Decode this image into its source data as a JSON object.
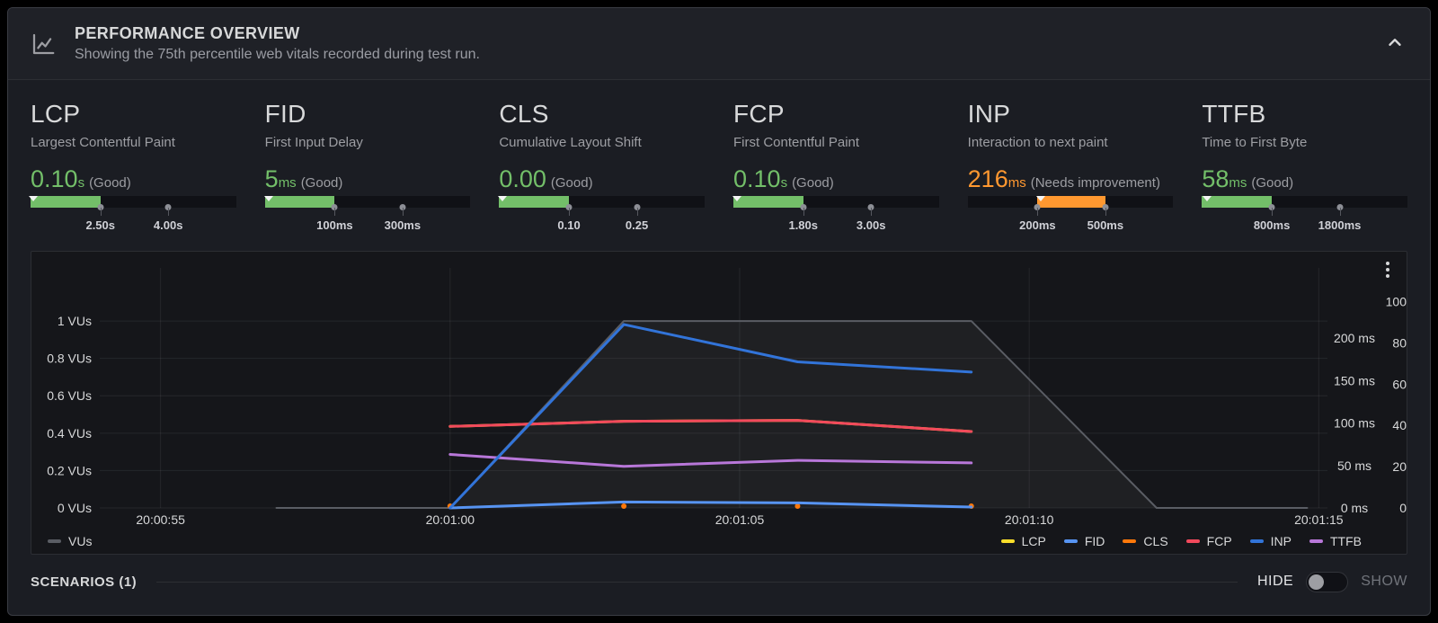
{
  "header": {
    "title": "PERFORMANCE OVERVIEW",
    "subtitle": "Showing the 75th percentile web vitals recorded during test run."
  },
  "icons": {
    "panel": "line-chart",
    "collapse": "chevron-up",
    "panel_menu": "kebab-vertical"
  },
  "colors": {
    "good": "#73BF69",
    "needs_improvement": "#FF9830",
    "axis_text": "#d8d9da",
    "grid": "rgba(255,255,255,0.07)",
    "series": {
      "VUs": "#5a5d64",
      "LCP": "#FADE2A",
      "FID": "#5794F2",
      "CLS": "#FF780A",
      "FCP": "#F2495C",
      "INP": "#3274D9",
      "TTFB": "#B877D9"
    }
  },
  "metrics": {
    "cards": [
      {
        "abbr": "LCP",
        "name": "Largest Contentful Paint",
        "value": "0.10",
        "unit": "s",
        "status": "(Good)",
        "status_level": "good",
        "value_num": 0.1,
        "thresholds": [
          2.5,
          4.0
        ],
        "threshold_labels": [
          "2.50s",
          "4.00s"
        ]
      },
      {
        "abbr": "FID",
        "name": "First Input Delay",
        "value": "5",
        "unit": "ms",
        "status": "(Good)",
        "status_level": "good",
        "value_num": 5,
        "thresholds": [
          100,
          300
        ],
        "threshold_labels": [
          "100ms",
          "300ms"
        ]
      },
      {
        "abbr": "CLS",
        "name": "Cumulative Layout Shift",
        "value": "0.00",
        "unit": "",
        "status": "(Good)",
        "status_level": "good",
        "value_num": 0.0,
        "thresholds": [
          0.1,
          0.25
        ],
        "threshold_labels": [
          "0.10",
          "0.25"
        ]
      },
      {
        "abbr": "FCP",
        "name": "First Contentful Paint",
        "value": "0.10",
        "unit": "s",
        "status": "(Good)",
        "status_level": "good",
        "value_num": 0.1,
        "thresholds": [
          1.8,
          3.0
        ],
        "threshold_labels": [
          "1.80s",
          "3.00s"
        ]
      },
      {
        "abbr": "INP",
        "name": "Interaction to next paint",
        "value": "216",
        "unit": "ms",
        "status": "(Needs improvement)",
        "status_level": "needs-improvement",
        "value_num": 216,
        "thresholds": [
          200,
          500
        ],
        "threshold_labels": [
          "200ms",
          "500ms"
        ]
      },
      {
        "abbr": "TTFB",
        "name": "Time to First Byte",
        "value": "58",
        "unit": "ms",
        "status": "(Good)",
        "status_level": "good",
        "value_num": 58,
        "thresholds": [
          800,
          1800
        ],
        "threshold_labels": [
          "800ms",
          "1800ms"
        ]
      }
    ]
  },
  "chart_data": {
    "type": "line",
    "x_unit": "seconds after 20:00:55",
    "x_domain": [
      -1.05,
      20.15
    ],
    "x_ticks": [
      {
        "t": 0,
        "label": "20:00:55"
      },
      {
        "t": 5,
        "label": "20:01:00"
      },
      {
        "t": 10,
        "label": "20:01:05"
      },
      {
        "t": 15,
        "label": "20:01:10"
      },
      {
        "t": 20,
        "label": "20:01:15"
      }
    ],
    "left_axis": {
      "name": "virtual users",
      "max": 1.236,
      "ticks": [
        0,
        0.2,
        0.4,
        0.6,
        0.8,
        1
      ],
      "labels": [
        "0 VUs",
        "0.2 VUs",
        "0.4 VUs",
        "0.6 VUs",
        "0.8 VUs",
        "1 VUs"
      ],
      "grid": true
    },
    "right_axis_ms": {
      "name": "milliseconds",
      "max": 272,
      "ticks": [
        0,
        50,
        100,
        150,
        200
      ],
      "labels": [
        "0 ms",
        "50 ms",
        "100 ms",
        "150 ms",
        "200 ms"
      ],
      "grid": false
    },
    "right_axis_secondary": {
      "name": "score",
      "max": 112,
      "ticks": [
        0,
        20,
        40,
        60,
        80,
        100
      ],
      "labels": [
        "0",
        "20",
        "40",
        "60",
        "80",
        "100"
      ],
      "grid": false
    },
    "series": [
      {
        "name": "VUs",
        "axis": "left",
        "color_key": "VUs",
        "style": "line-fill",
        "points": [
          [
            2,
            0
          ],
          [
            5,
            0
          ],
          [
            8,
            1
          ],
          [
            14,
            1
          ],
          [
            17.2,
            0
          ],
          [
            19.8,
            0
          ]
        ]
      },
      {
        "name": "LCP",
        "axis": "ms",
        "color_key": "LCP",
        "style": "line",
        "points": [
          [
            5,
            96
          ],
          [
            8,
            102
          ],
          [
            11,
            103
          ],
          [
            14,
            90
          ]
        ],
        "note": "overlaps FCP line"
      },
      {
        "name": "CLS",
        "axis": "secondary",
        "color_key": "CLS",
        "style": "points",
        "points": [
          [
            5,
            0
          ],
          [
            8,
            0
          ],
          [
            11,
            0
          ],
          [
            14,
            0
          ]
        ]
      },
      {
        "name": "FCP",
        "axis": "ms",
        "color_key": "FCP",
        "style": "line",
        "points": [
          [
            5,
            96
          ],
          [
            8,
            102
          ],
          [
            11,
            103
          ],
          [
            14,
            90
          ]
        ]
      },
      {
        "name": "TTFB",
        "axis": "ms",
        "color_key": "TTFB",
        "style": "line",
        "points": [
          [
            5,
            63
          ],
          [
            8,
            49
          ],
          [
            11,
            56
          ],
          [
            14,
            53
          ]
        ]
      },
      {
        "name": "FID",
        "axis": "ms",
        "color_key": "FID",
        "style": "line",
        "points": [
          [
            5,
            0
          ],
          [
            8,
            7
          ],
          [
            11,
            6
          ],
          [
            14,
            1
          ]
        ]
      },
      {
        "name": "INP",
        "axis": "ms",
        "color_key": "INP",
        "style": "line",
        "points": [
          [
            5,
            0
          ],
          [
            8,
            216
          ],
          [
            11,
            172
          ],
          [
            14,
            160
          ]
        ]
      }
    ],
    "legend_left": [
      "VUs"
    ],
    "legend_right": [
      "LCP",
      "FID",
      "CLS",
      "FCP",
      "INP",
      "TTFB"
    ],
    "legend_position": "bottom"
  },
  "footer": {
    "scenarios_label": "SCENARIOS (1)",
    "hide_label": "HIDE",
    "show_label": "SHOW",
    "toggle_state": "hide"
  }
}
